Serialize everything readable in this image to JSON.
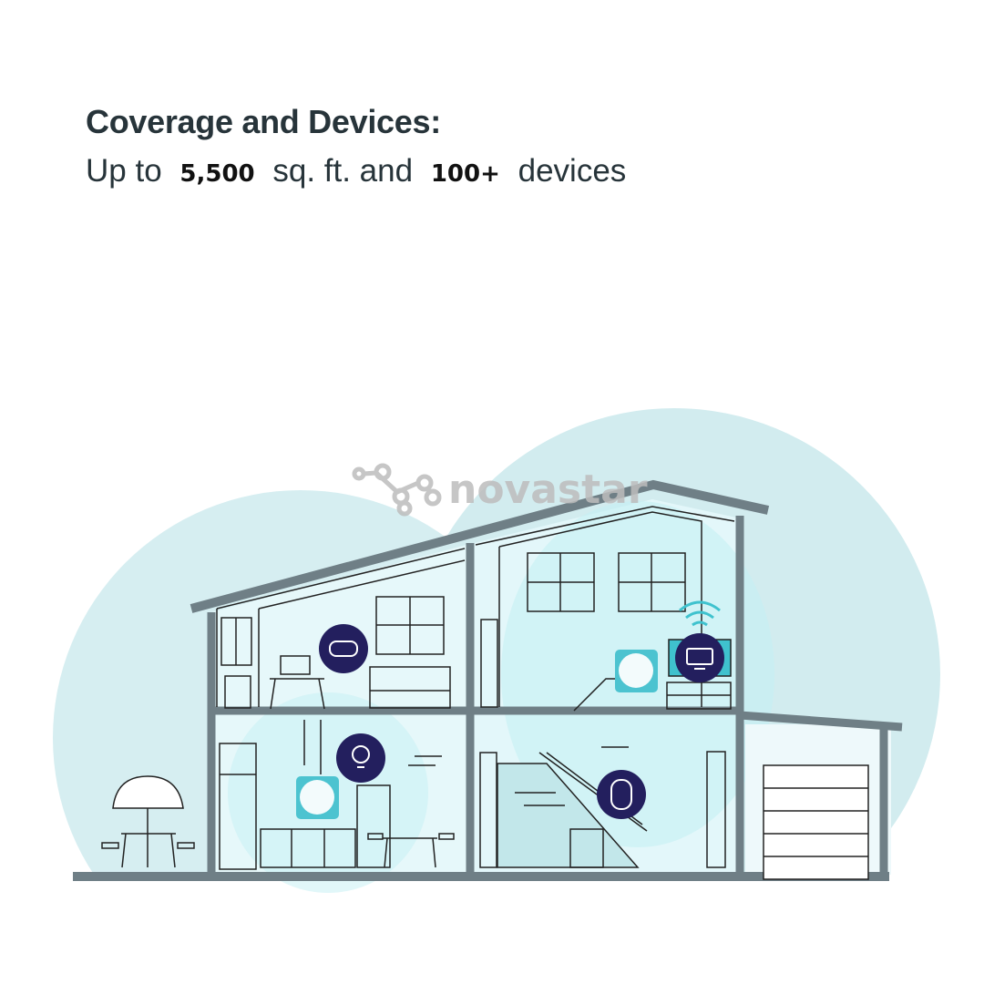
{
  "heading": {
    "title": "Coverage and Devices:",
    "line_prefix": "Up to",
    "area_value": "5,500",
    "area_unit": "sq. ft. and",
    "device_value": "100+",
    "device_unit": "devices"
  },
  "watermark": "novastar",
  "colors": {
    "text": "#27343a",
    "coverage_blob": "#d6eef1",
    "house_wall": "#6f7f86",
    "interior": "#e6f8fa",
    "device_badge": "#231f5e",
    "router": "#4cc3d0"
  },
  "device_icons": [
    "gamepad-icon",
    "tv-icon",
    "lightbulb-icon",
    "smart-plug-icon",
    "wifi-icon"
  ]
}
